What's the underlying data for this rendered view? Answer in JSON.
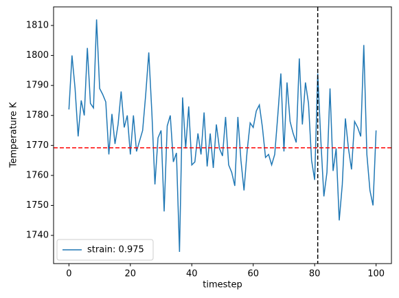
{
  "chart_data": {
    "type": "line",
    "x_label": "timestep",
    "y_label": "Temperature K",
    "x": [
      0,
      1,
      2,
      3,
      4,
      5,
      6,
      7,
      8,
      9,
      10,
      11,
      12,
      13,
      14,
      15,
      16,
      17,
      18,
      19,
      20,
      21,
      22,
      23,
      24,
      25,
      26,
      27,
      28,
      29,
      30,
      31,
      32,
      33,
      34,
      35,
      36,
      37,
      38,
      39,
      40,
      41,
      42,
      43,
      44,
      45,
      46,
      47,
      48,
      49,
      50,
      51,
      52,
      53,
      54,
      55,
      56,
      57,
      58,
      59,
      60,
      61,
      62,
      63,
      64,
      65,
      66,
      67,
      68,
      69,
      70,
      71,
      72,
      73,
      74,
      75,
      76,
      77,
      78,
      79,
      80,
      81,
      82,
      83,
      84,
      85,
      86,
      87,
      88,
      89,
      90,
      91,
      92,
      93,
      94,
      95,
      96,
      97,
      98,
      99,
      100
    ],
    "series": [
      {
        "name": "strain: 0.975",
        "color": "#1f77b4",
        "values": [
          1782,
          1800,
          1789,
          1773,
          1785,
          1780,
          1802.5,
          1784,
          1782.5,
          1812,
          1789,
          1787,
          1784.5,
          1767,
          1780.5,
          1770.5,
          1777,
          1788,
          1776,
          1780,
          1767,
          1780,
          1768,
          1771.5,
          1775,
          1787,
          1801,
          1781,
          1757,
          1772.5,
          1775,
          1748,
          1776.5,
          1780,
          1764.5,
          1767.5,
          1734.5,
          1786,
          1769,
          1783,
          1763.5,
          1764.5,
          1774,
          1767,
          1781,
          1763,
          1774,
          1762.5,
          1777,
          1769,
          1766.5,
          1779.5,
          1763.5,
          1761,
          1756.5,
          1779.5,
          1765,
          1755,
          1768,
          1777.5,
          1776,
          1781.5,
          1783.5,
          1776,
          1766,
          1767,
          1763.5,
          1767,
          1780,
          1794,
          1768,
          1791,
          1778,
          1774,
          1771,
          1799,
          1777,
          1791,
          1784,
          1765,
          1758.5,
          1794,
          1772,
          1753,
          1761,
          1789,
          1761.5,
          1769,
          1745,
          1757,
          1779,
          1769,
          1762,
          1778,
          1776,
          1773,
          1803.5,
          1767,
          1755,
          1750,
          1775
        ]
      }
    ],
    "hline": {
      "y": 1769.2,
      "color": "#ff0000"
    },
    "vline": {
      "x": 81,
      "color": "#000000"
    },
    "xlim": [
      -5,
      105
    ],
    "xticks": [
      0,
      20,
      40,
      60,
      80,
      100
    ],
    "ylim": [
      1730.6,
      1816.2
    ],
    "yticks": [
      1740,
      1750,
      1760,
      1770,
      1780,
      1790,
      1800,
      1810
    ],
    "legend": "lower left"
  }
}
